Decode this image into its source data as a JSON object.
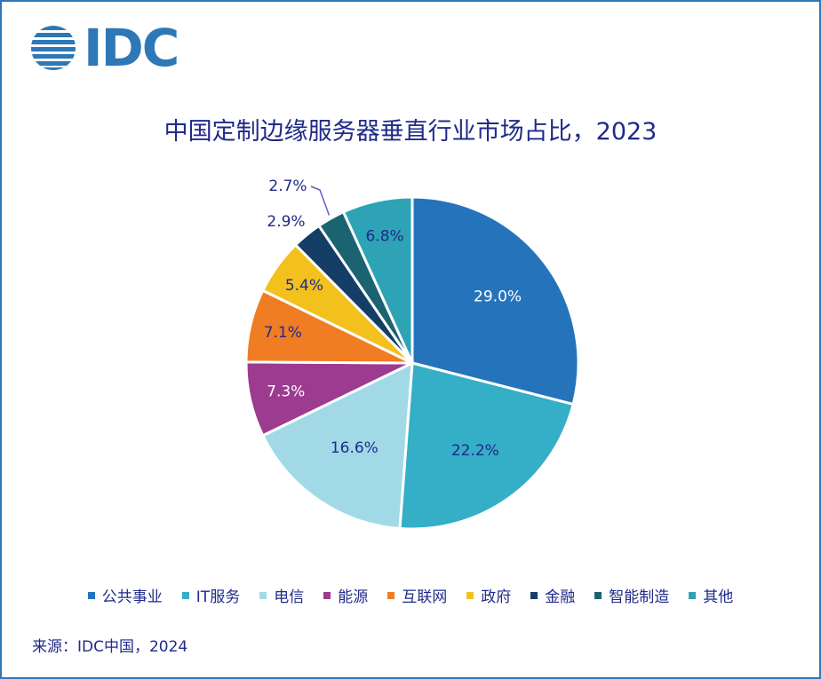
{
  "logo": {
    "text": "IDC"
  },
  "source": "来源：IDC中国，2024",
  "chart_data": {
    "type": "pie",
    "title": "中国定制边缘服务器垂直行业市场占比，2023",
    "legend_position": "bottom",
    "slices": [
      {
        "label": "公共事业",
        "value": 29.0,
        "display": "29.0%",
        "color": "#2574bb",
        "text_color": "#ffffff"
      },
      {
        "label": "IT服务",
        "value": 22.2,
        "display": "22.2%",
        "color": "#35aec7",
        "text_color": "#1f2a8a"
      },
      {
        "label": "电信",
        "value": 16.6,
        "display": "16.6%",
        "color": "#a1dae6",
        "text_color": "#1f2a8a"
      },
      {
        "label": "能源",
        "value": 7.3,
        "display": "7.3%",
        "color": "#9c3b8f",
        "text_color": "#ffffff"
      },
      {
        "label": "互联网",
        "value": 7.1,
        "display": "7.1%",
        "color": "#f07d23",
        "text_color": "#1f2a8a"
      },
      {
        "label": "政府",
        "value": 5.4,
        "display": "5.4%",
        "color": "#f2c11e",
        "text_color": "#1f2a8a"
      },
      {
        "label": "金融",
        "value": 2.9,
        "display": "2.9%",
        "color": "#153e66",
        "text_color": "#1f2a8a"
      },
      {
        "label": "智能制造",
        "value": 2.7,
        "display": "2.7%",
        "color": "#1b6371",
        "text_color": "#1f2a8a"
      },
      {
        "label": "其他",
        "value": 6.8,
        "display": "6.8%",
        "color": "#2ea3b6",
        "text_color": "#1f2a8a"
      }
    ]
  }
}
